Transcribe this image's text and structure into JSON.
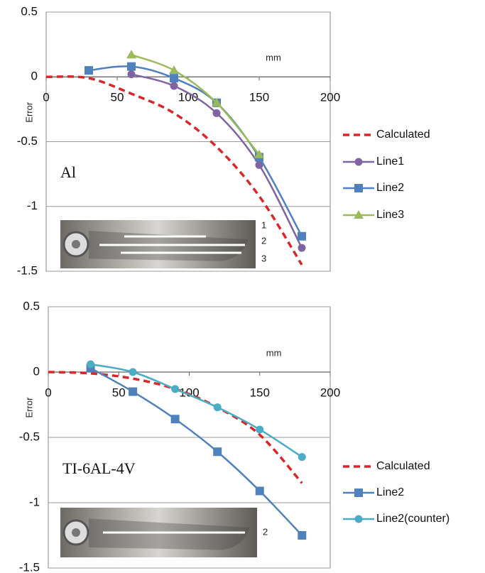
{
  "chart_data": [
    {
      "type": "line",
      "annotation": "Al",
      "x_label": "mm",
      "y_label": "Error",
      "xlim": [
        0,
        200
      ],
      "xticks": [
        0,
        50,
        100,
        150,
        200
      ],
      "ylim": [
        -1.5,
        0.5
      ],
      "yticks": [
        0.5,
        0,
        -0.5,
        -1,
        -1.5
      ],
      "grid": true,
      "legend": "right",
      "inset_labels": [
        "1",
        "2",
        "3"
      ],
      "series": [
        {
          "name": "Calculated",
          "color": "#d9262a",
          "style": "dashed",
          "marker": "none",
          "x": [
            0,
            30,
            60,
            90,
            120,
            150,
            180
          ],
          "values": [
            0,
            -0.01,
            -0.13,
            -0.28,
            -0.54,
            -0.92,
            -1.45
          ]
        },
        {
          "name": "Line1",
          "color": "#8064a2",
          "marker": "circle",
          "x": [
            60,
            90,
            120,
            150,
            180
          ],
          "values": [
            0.02,
            -0.07,
            -0.28,
            -0.68,
            -1.32
          ]
        },
        {
          "name": "Line2",
          "color": "#4f81bd",
          "marker": "square",
          "x": [
            30,
            60,
            90,
            120,
            150,
            180
          ],
          "values": [
            0.05,
            0.08,
            -0.01,
            -0.2,
            -0.62,
            -1.23
          ]
        },
        {
          "name": "Line3",
          "color": "#9bbb59",
          "marker": "triangle",
          "x": [
            60,
            90,
            120,
            150
          ],
          "values": [
            0.17,
            0.05,
            -0.2,
            -0.6
          ]
        }
      ]
    },
    {
      "type": "line",
      "annotation": "TI-6AL-4V",
      "x_label": "mm",
      "y_label": "Error",
      "xlim": [
        0,
        200
      ],
      "xticks": [
        0,
        50,
        100,
        150,
        200
      ],
      "ylim": [
        -1.5,
        0.5
      ],
      "yticks": [
        0.5,
        0,
        -0.5,
        -1,
        -1.5
      ],
      "grid": true,
      "legend": "right",
      "inset_labels": [
        "2"
      ],
      "series": [
        {
          "name": "Calculated",
          "color": "#d9262a",
          "style": "dashed",
          "marker": "none",
          "x": [
            0,
            30,
            60,
            90,
            120,
            150,
            180
          ],
          "values": [
            0,
            -0.01,
            -0.05,
            -0.13,
            -0.27,
            -0.48,
            -0.85
          ]
        },
        {
          "name": "Line2",
          "color": "#4f81bd",
          "marker": "square",
          "x": [
            30,
            60,
            90,
            120,
            150,
            180
          ],
          "values": [
            0.03,
            -0.15,
            -0.36,
            -0.61,
            -0.91,
            -1.25
          ]
        },
        {
          "name": "Line2(counter)",
          "color": "#4bacc6",
          "marker": "circle",
          "x": [
            30,
            60,
            90,
            120,
            150,
            180
          ],
          "values": [
            0.06,
            0.0,
            -0.13,
            -0.27,
            -0.44,
            -0.65
          ]
        }
      ]
    }
  ]
}
